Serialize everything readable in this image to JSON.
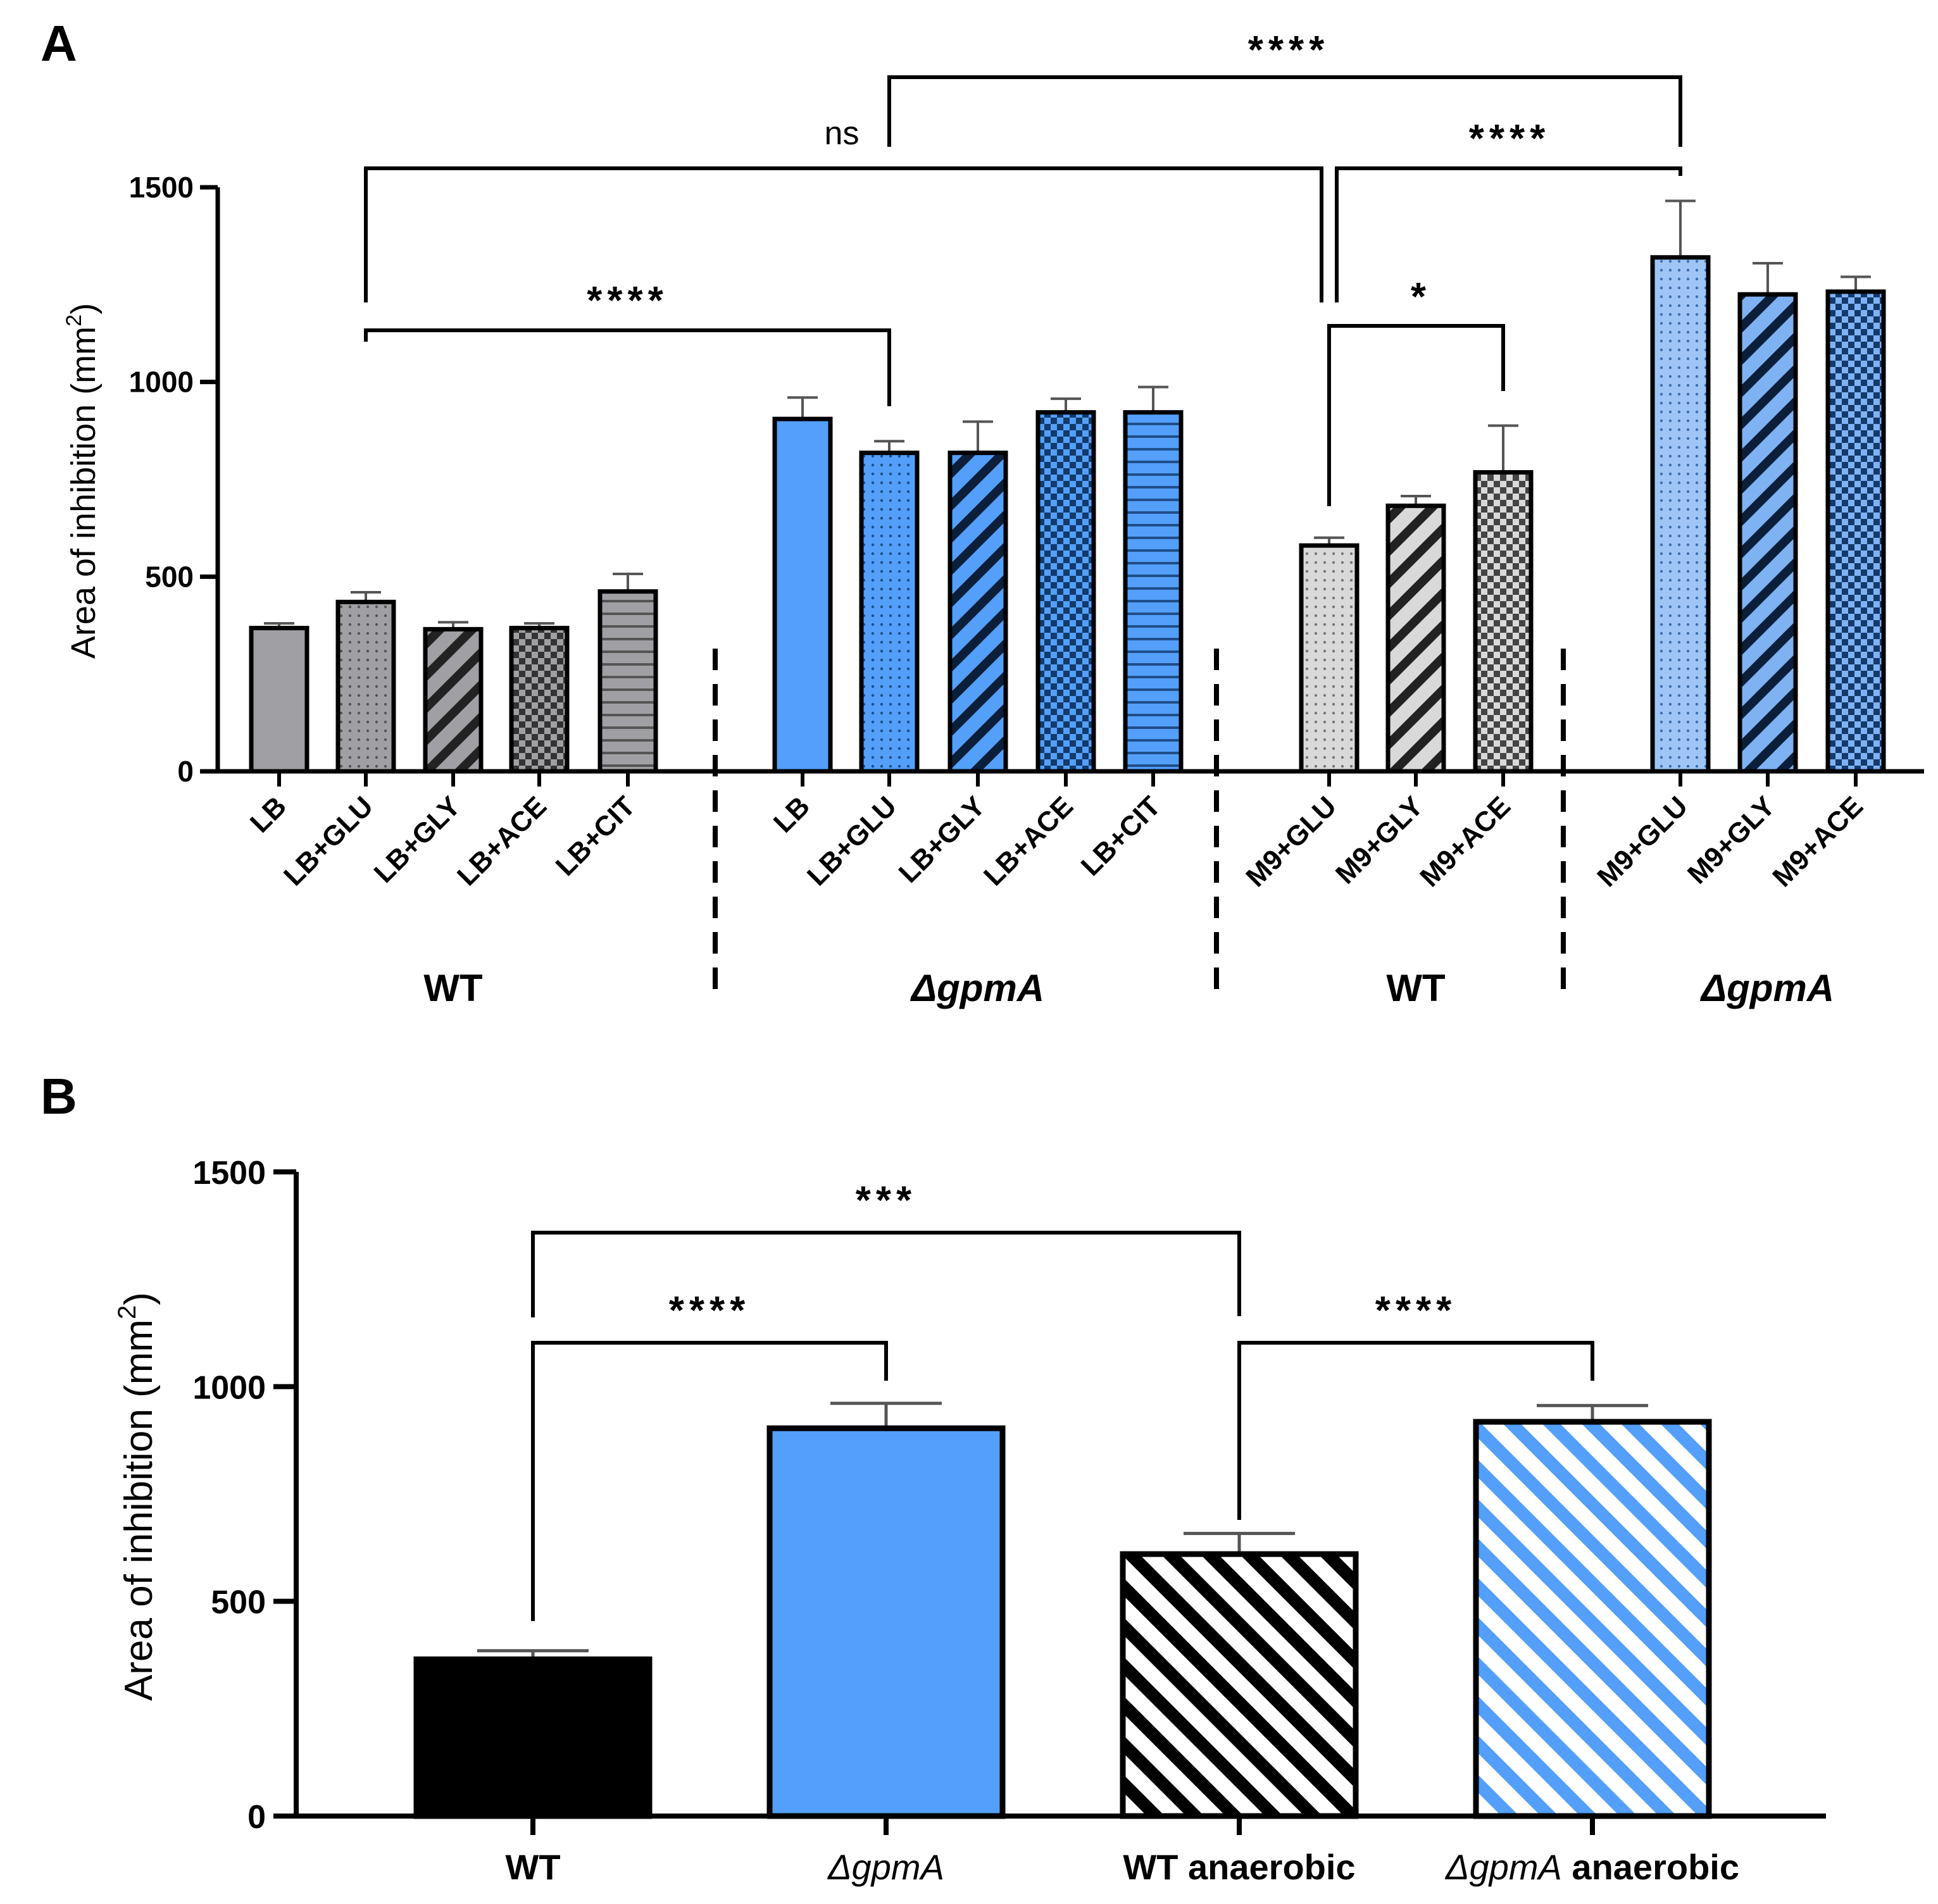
{
  "panels": {
    "a": "A",
    "b": "B"
  },
  "chart_data": [
    {
      "type": "bar",
      "panel": "A",
      "ylabel": "Area of inhibition (mm",
      "ylabel_sup": "2",
      "ylabel_close": ")",
      "ylim": [
        0,
        1500
      ],
      "yticks": [
        "0",
        "500",
        "1000",
        "1500"
      ],
      "groups": [
        {
          "label": "WT",
          "italic": false
        },
        {
          "label": "ΔgpmA",
          "italic": true
        },
        {
          "label": "WT",
          "italic": false
        },
        {
          "label": "ΔgpmA",
          "italic": true
        }
      ],
      "bars": [
        {
          "category": "LB",
          "group": 0,
          "value": 368,
          "error": 12,
          "color": "#a0a0a4",
          "pattern": "solid"
        },
        {
          "category": "LB+GLU",
          "group": 0,
          "value": 435,
          "error": 25,
          "color": "#a0a0a4",
          "pattern": "dots"
        },
        {
          "category": "LB+GLY",
          "group": 0,
          "value": 365,
          "error": 18,
          "color": "#a0a0a4",
          "pattern": "diag"
        },
        {
          "category": "LB+ACE",
          "group": 0,
          "value": 368,
          "error": 12,
          "color": "#a0a0a4",
          "pattern": "check"
        },
        {
          "category": "LB+CIT",
          "group": 0,
          "value": 462,
          "error": 45,
          "color": "#a0a0a4",
          "pattern": "hlines"
        },
        {
          "category": "LB",
          "group": 1,
          "value": 905,
          "error": 55,
          "color": "#539ffa",
          "pattern": "solid"
        },
        {
          "category": "LB+GLU",
          "group": 1,
          "value": 818,
          "error": 30,
          "color": "#539ffa",
          "pattern": "dots"
        },
        {
          "category": "LB+GLY",
          "group": 1,
          "value": 818,
          "error": 80,
          "color": "#539ffa",
          "pattern": "diag"
        },
        {
          "category": "LB+ACE",
          "group": 1,
          "value": 922,
          "error": 35,
          "color": "#539ffa",
          "pattern": "check"
        },
        {
          "category": "LB+CIT",
          "group": 1,
          "value": 922,
          "error": 65,
          "color": "#539ffa",
          "pattern": "hlines"
        },
        {
          "category": "M9+GLU",
          "group": 2,
          "value": 580,
          "error": 20,
          "color": "#d9d9d9",
          "pattern": "dots"
        },
        {
          "category": "M9+GLY",
          "group": 2,
          "value": 682,
          "error": 25,
          "color": "#d9d9d9",
          "pattern": "diag"
        },
        {
          "category": "M9+ACE",
          "group": 2,
          "value": 768,
          "error": 120,
          "color": "#d9d9d9",
          "pattern": "check"
        },
        {
          "category": "M9+GLU",
          "group": 3,
          "value": 1320,
          "error": 145,
          "color": "#9ec5f5",
          "pattern": "dots"
        },
        {
          "category": "M9+GLY",
          "group": 3,
          "value": 1225,
          "error": 80,
          "color": "#7fb2f3",
          "pattern": "diag"
        },
        {
          "category": "M9+ACE",
          "group": 3,
          "value": 1232,
          "error": 38,
          "color": "#7fb2f3",
          "pattern": "check"
        }
      ],
      "significance": [
        {
          "label": "****",
          "from": 1,
          "to": 6
        },
        {
          "label": "****",
          "from": 1,
          "to": 10
        },
        {
          "label": "*",
          "from": 10,
          "to": 12
        },
        {
          "label": "****",
          "from": 10,
          "to": 13
        },
        {
          "label": "ns",
          "from": 6,
          "to": 13,
          "part": "left"
        },
        {
          "label": "****",
          "from": 6,
          "to": 13,
          "part": "top"
        }
      ]
    },
    {
      "type": "bar",
      "panel": "B",
      "ylabel": "Area of inhibition (mm",
      "ylabel_sup": "2",
      "ylabel_close": ")",
      "ylim": [
        0,
        1500
      ],
      "yticks": [
        "0",
        "500",
        "1000",
        "1500"
      ],
      "bars": [
        {
          "category": "WT",
          "prefix": "",
          "suffix": "",
          "value": 365,
          "error": 20,
          "color": "#000000",
          "pattern": "solid"
        },
        {
          "category": "ΔgpmA",
          "prefix": "ΔgpmA",
          "suffix": "",
          "value": 903,
          "error": 58,
          "color": "#539ffa",
          "pattern": "solid"
        },
        {
          "category": "WT anaerobic",
          "prefix": "",
          "suffix": "WT anaerobic",
          "value": 610,
          "error": 48,
          "color": "#000000",
          "pattern": "diag"
        },
        {
          "category": "ΔgpmA anaerobic",
          "prefix": "ΔgpmA",
          "suffix": " anaerobic",
          "value": 918,
          "error": 38,
          "color": "#539ffa",
          "pattern": "diag"
        }
      ],
      "significance": [
        {
          "label": "***",
          "from": 0,
          "to": 2
        },
        {
          "label": "****",
          "from": 0,
          "to": 1
        },
        {
          "label": "****",
          "from": 2,
          "to": 3
        }
      ]
    }
  ]
}
